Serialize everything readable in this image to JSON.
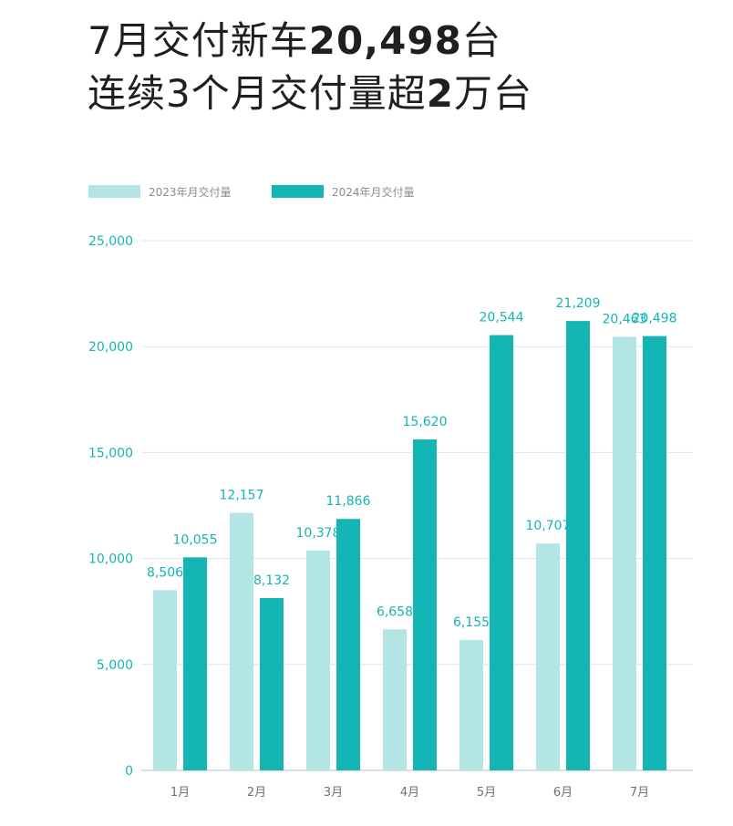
{
  "headline": {
    "line1_prefix": "7月交付新车",
    "line1_bold": "20,498",
    "line1_suffix": "台",
    "line2_prefix": "连续3个月交付量超",
    "line2_bold": "2",
    "line2_suffix": "万台"
  },
  "chart_data": {
    "type": "bar",
    "categories": [
      "1月",
      "2月",
      "3月",
      "4月",
      "5月",
      "6月",
      "7月"
    ],
    "series": [
      {
        "name": "2023年月交付量",
        "color": "#b3e5e5",
        "values": [
          8506,
          12157,
          10378,
          6658,
          6155,
          10707,
          20463
        ]
      },
      {
        "name": "2024年月交付量",
        "color": "#14b5b5",
        "values": [
          10055,
          8132,
          11866,
          15620,
          20544,
          21209,
          20498
        ]
      }
    ],
    "data_labels": [
      [
        "8,506",
        "12,157",
        "10,378",
        "6,658",
        "6,155",
        "10,707",
        "20,463"
      ],
      [
        "10,055",
        "8,132",
        "11,866",
        "15,620",
        "20,544",
        "21,209",
        "20,498"
      ]
    ],
    "yticks": [
      0,
      5000,
      10000,
      15000,
      20000,
      25000
    ],
    "ytick_labels": [
      "0",
      "5,000",
      "10,000",
      "15,000",
      "20,000",
      "25,000"
    ],
    "ylim": [
      0,
      25000
    ],
    "grid": true,
    "legend_position": "top-left",
    "label_color": "#14b5b5"
  }
}
